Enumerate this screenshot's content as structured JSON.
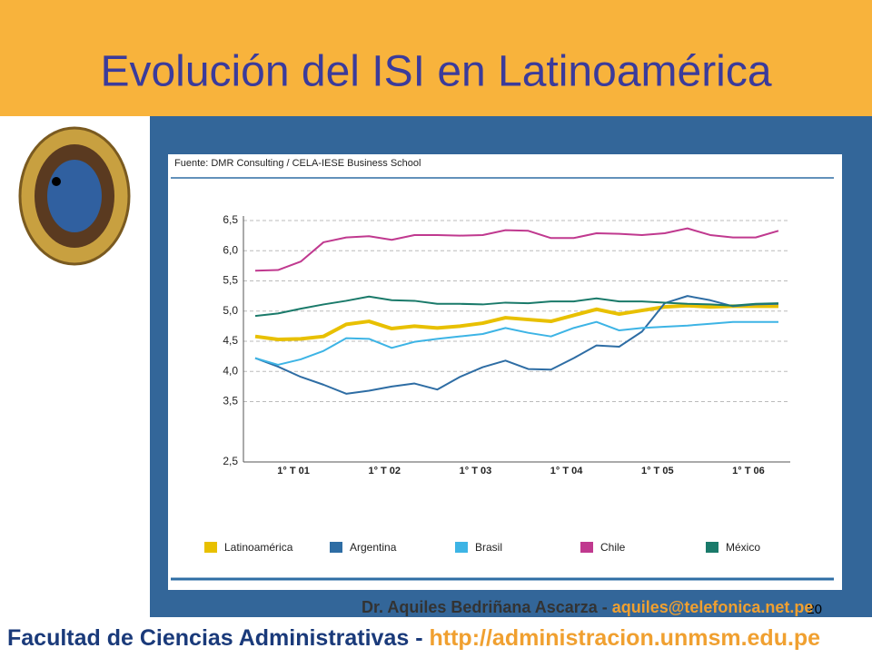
{
  "slide": {
    "title": "Evolución del ISI en Latinoamérica",
    "page_number": "20"
  },
  "footer": {
    "author": "Dr. Aquiles Bedriñana Ascarza -",
    "email": "aquiles@telefonica.net.pe",
    "faculty": "Facultad de Ciencias Administrativas -",
    "url": "http://administracion.unmsm.edu.pe"
  },
  "chart_data": {
    "type": "line",
    "subtitle": "Fuente: DMR Consulting / CELA-IESE Business School",
    "categories": [
      null,
      null,
      "1° T 01",
      null,
      null,
      null,
      "1° T 02",
      null,
      null,
      null,
      "1° T 03",
      null,
      null,
      null,
      "1° T 04",
      null,
      null,
      null,
      "1° T 05",
      null,
      null,
      null,
      "1° T 06",
      null
    ],
    "ylim": [
      2.5,
      6.5
    ],
    "yticks": [
      {
        "value": 6.5,
        "label": "6,5"
      },
      {
        "value": 6.0,
        "label": "6,0"
      },
      {
        "value": 5.5,
        "label": "5,5"
      },
      {
        "value": 5.0,
        "label": "5,0"
      },
      {
        "value": 4.5,
        "label": "4,5"
      },
      {
        "value": 4.0,
        "label": "4,0"
      },
      {
        "value": 3.5,
        "label": "3,5"
      },
      {
        "value": 2.5,
        "label": "2,5"
      }
    ],
    "grid": true,
    "legend": "bottom",
    "series": [
      {
        "name": "Latinoamérica",
        "color": "#e8c000",
        "values": [
          4.58,
          4.53,
          4.54,
          4.58,
          4.78,
          4.83,
          4.71,
          4.75,
          4.72,
          4.75,
          4.8,
          4.89,
          4.86,
          4.83,
          4.93,
          5.03,
          4.95,
          5.01,
          5.07,
          5.09,
          5.07,
          5.08,
          5.08,
          5.08
        ]
      },
      {
        "name": "Argentina",
        "color": "#2e6da4",
        "values": [
          4.22,
          4.08,
          3.91,
          3.78,
          3.63,
          3.68,
          3.75,
          3.8,
          3.7,
          3.91,
          4.07,
          4.18,
          4.04,
          4.03,
          4.22,
          4.43,
          4.41,
          4.66,
          5.13,
          5.25,
          5.18,
          5.08,
          5.11,
          5.12
        ]
      },
      {
        "name": "Brasil",
        "color": "#3db4e5",
        "values": [
          4.22,
          4.11,
          4.2,
          4.34,
          4.55,
          4.54,
          4.39,
          4.49,
          4.54,
          4.58,
          4.62,
          4.72,
          4.64,
          4.58,
          4.72,
          4.82,
          4.68,
          4.72,
          4.74,
          4.76,
          4.79,
          4.82,
          4.82,
          4.82
        ]
      },
      {
        "name": "Chile",
        "color": "#c0398f",
        "values": [
          5.67,
          5.68,
          5.82,
          6.14,
          6.22,
          6.24,
          6.18,
          6.26,
          6.26,
          6.25,
          6.26,
          6.34,
          6.33,
          6.21,
          6.21,
          6.29,
          6.28,
          6.26,
          6.29,
          6.37,
          6.26,
          6.22,
          6.22,
          6.33
        ]
      },
      {
        "name": "México",
        "color": "#1a7a6a",
        "values": [
          4.92,
          4.96,
          5.04,
          5.11,
          5.17,
          5.24,
          5.18,
          5.17,
          5.12,
          5.12,
          5.11,
          5.14,
          5.13,
          5.16,
          5.16,
          5.21,
          5.16,
          5.16,
          5.14,
          5.12,
          5.11,
          5.09,
          5.12,
          5.13
        ]
      }
    ]
  }
}
